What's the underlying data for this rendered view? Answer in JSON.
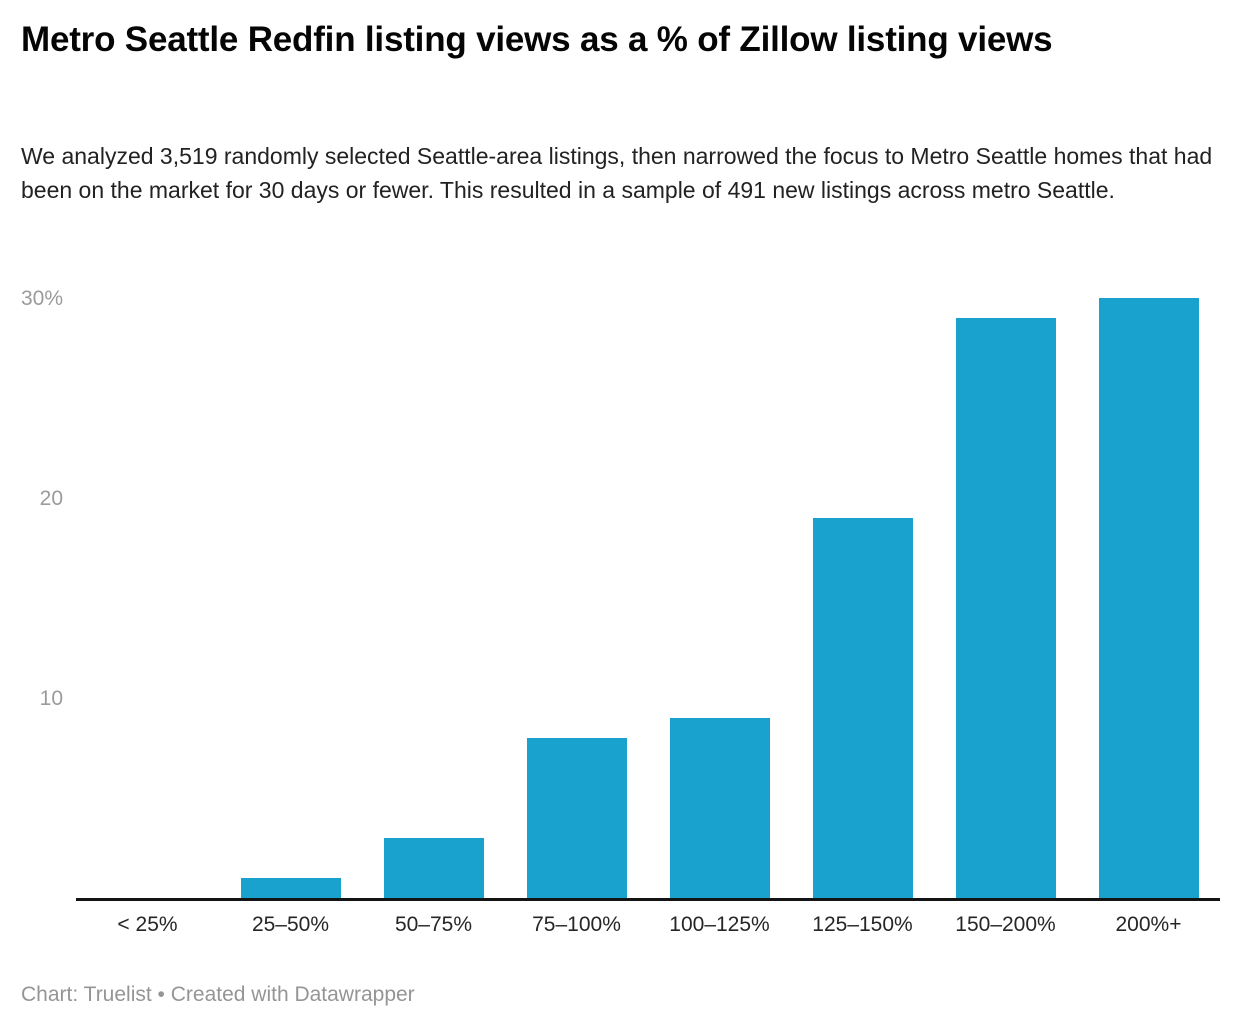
{
  "header": {
    "title": "Metro Seattle Redfin listing views as a % of Zillow listing views",
    "description": "We analyzed 3,519 randomly selected Seattle-area listings, then narrowed the focus to Metro Seattle homes that had been on the market for 30 days or fewer. This resulted in a sample of 491 new listings across metro Seattle."
  },
  "footer": {
    "text": "Chart: Truelist • Created with Datawrapper"
  },
  "chart_data": {
    "type": "bar",
    "title": "Metro Seattle Redfin listing views as a % of Zillow listing views",
    "categories": [
      "< 25%",
      "25–50%",
      "50–75%",
      "75–100%",
      "100–125%",
      "125–150%",
      "150–200%",
      "200%+"
    ],
    "values": [
      0,
      1,
      3,
      8,
      9,
      19,
      29,
      30
    ],
    "value_unit": "%",
    "xlabel": "",
    "ylabel": "",
    "ylim": [
      0,
      31.4
    ],
    "y_ticks": [
      {
        "value": 10,
        "label": "10"
      },
      {
        "value": 20,
        "label": "20"
      },
      {
        "value": 30,
        "label": "30%"
      }
    ],
    "grid": false,
    "legend_position": "none",
    "bar_color": "#1aa2ce",
    "axis_line_color": "#141414",
    "tick_label_color": "#9b9b9b",
    "category_label_color": "#262626"
  }
}
